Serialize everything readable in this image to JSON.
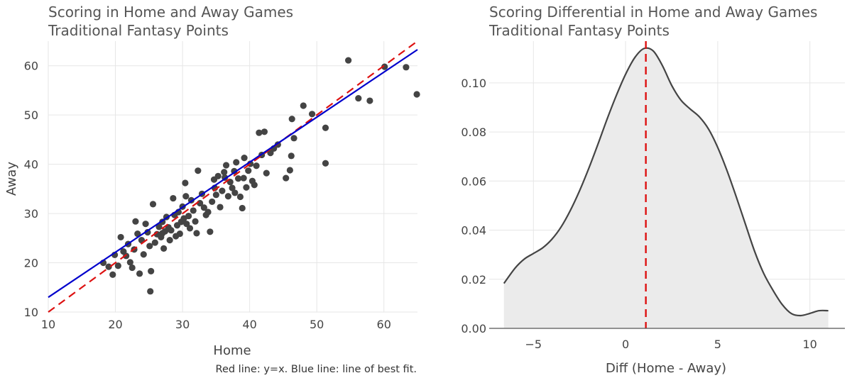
{
  "chart_data": [
    {
      "type": "scatter",
      "title": "Scoring in Home and Away Games",
      "subtitle": "Traditional Fantasy Points",
      "xlabel": "Home",
      "ylabel": "Away",
      "caption": "Red line: y=x. Blue line: line of best fit.",
      "xlim": [
        10,
        65
      ],
      "ylim": [
        10,
        65
      ],
      "xticks": [
        10,
        20,
        30,
        40,
        50,
        60
      ],
      "yticks": [
        10,
        20,
        30,
        40,
        50,
        60
      ],
      "grid": true,
      "colors": {
        "points": "#444444",
        "identity_line": "#dd1111",
        "fit_line": "#0000cc"
      },
      "reference_line": {
        "slope": 1,
        "intercept": 0
      },
      "fit_line": {
        "slope": 0.914,
        "intercept": 3.86
      },
      "points": [
        [
          18.2,
          20.0
        ],
        [
          19.0,
          19.2
        ],
        [
          19.6,
          17.6
        ],
        [
          19.9,
          21.6
        ],
        [
          20.4,
          19.4
        ],
        [
          20.8,
          25.2
        ],
        [
          21.2,
          22.3
        ],
        [
          21.6,
          21.4
        ],
        [
          21.9,
          23.8
        ],
        [
          22.2,
          20.1
        ],
        [
          22.5,
          19.0
        ],
        [
          22.8,
          22.7
        ],
        [
          23.0,
          28.4
        ],
        [
          23.3,
          25.9
        ],
        [
          23.6,
          17.8
        ],
        [
          23.9,
          24.6
        ],
        [
          24.2,
          21.7
        ],
        [
          24.5,
          27.9
        ],
        [
          24.8,
          26.2
        ],
        [
          25.1,
          23.4
        ],
        [
          25.3,
          18.3
        ],
        [
          25.2,
          14.2
        ],
        [
          25.6,
          31.9
        ],
        [
          25.9,
          24.1
        ],
        [
          26.2,
          25.8
        ],
        [
          26.5,
          27.3
        ],
        [
          26.8,
          25.2
        ],
        [
          27.0,
          28.3
        ],
        [
          27.2,
          22.9
        ],
        [
          27.4,
          26.4
        ],
        [
          27.6,
          29.3
        ],
        [
          27.9,
          27.2
        ],
        [
          28.1,
          24.6
        ],
        [
          28.3,
          26.6
        ],
        [
          28.6,
          33.1
        ],
        [
          28.8,
          29.7
        ],
        [
          29.0,
          25.4
        ],
        [
          29.2,
          27.6
        ],
        [
          29.4,
          30.3
        ],
        [
          29.6,
          25.9
        ],
        [
          29.8,
          28.3
        ],
        [
          30.0,
          31.4
        ],
        [
          30.2,
          29.0
        ],
        [
          30.4,
          36.2
        ],
        [
          30.6,
          27.9
        ],
        [
          30.9,
          29.5
        ],
        [
          31.1,
          27.0
        ],
        [
          31.3,
          32.7
        ],
        [
          31.6,
          30.6
        ],
        [
          31.9,
          28.4
        ],
        [
          32.1,
          26.0
        ],
        [
          32.3,
          38.7
        ],
        [
          32.6,
          32.1
        ],
        [
          32.9,
          34.0
        ],
        [
          33.2,
          31.2
        ],
        [
          33.5,
          29.7
        ],
        [
          33.8,
          30.3
        ],
        [
          34.1,
          26.3
        ],
        [
          34.4,
          32.4
        ],
        [
          34.7,
          36.9
        ],
        [
          35.0,
          33.8
        ],
        [
          35.3,
          37.6
        ],
        [
          35.6,
          31.3
        ],
        [
          35.9,
          34.6
        ],
        [
          36.2,
          38.4
        ],
        [
          36.5,
          39.8
        ],
        [
          36.8,
          33.5
        ],
        [
          37.1,
          36.4
        ],
        [
          37.4,
          35.2
        ],
        [
          37.7,
          38.6
        ],
        [
          38.0,
          40.4
        ],
        [
          38.3,
          37.1
        ],
        [
          38.6,
          33.4
        ],
        [
          38.9,
          31.1
        ],
        [
          39.2,
          41.3
        ],
        [
          39.5,
          35.3
        ],
        [
          39.8,
          38.7
        ],
        [
          40.1,
          40.1
        ],
        [
          40.4,
          36.6
        ],
        [
          40.7,
          35.8
        ],
        [
          41.0,
          39.7
        ],
        [
          41.4,
          46.4
        ],
        [
          41.8,
          41.9
        ],
        [
          42.2,
          46.6
        ],
        [
          42.5,
          38.2
        ],
        [
          43.1,
          42.3
        ],
        [
          43.6,
          43.2
        ],
        [
          44.2,
          44.0
        ],
        [
          45.4,
          37.2
        ],
        [
          46.0,
          38.8
        ],
        [
          46.2,
          41.7
        ],
        [
          46.3,
          49.2
        ],
        [
          46.6,
          45.3
        ],
        [
          48.0,
          51.9
        ],
        [
          49.3,
          50.2
        ],
        [
          51.3,
          47.4
        ],
        [
          51.3,
          40.2
        ],
        [
          54.7,
          61.1
        ],
        [
          56.2,
          53.4
        ],
        [
          57.9,
          52.9
        ],
        [
          60.1,
          59.8
        ],
        [
          63.3,
          59.7
        ],
        [
          64.9,
          54.2
        ],
        [
          27.0,
          26.0
        ],
        [
          30.5,
          33.5
        ],
        [
          34.8,
          35.2
        ],
        [
          36.3,
          37.3
        ],
        [
          37.8,
          34.2
        ],
        [
          39.1,
          37.2
        ]
      ]
    },
    {
      "type": "area",
      "title": "Scoring Differential in Home and Away Games",
      "subtitle": "Traditional Fantasy Points",
      "xlabel": "Diff (Home - Away)",
      "ylabel": "",
      "xlim": [
        -7.4,
        11.9
      ],
      "ylim": [
        0,
        0.117
      ],
      "xticks": [
        -5,
        0,
        5,
        10
      ],
      "xtick_labels": [
        "−5",
        "0",
        "5",
        "10"
      ],
      "yticks": [
        0.0,
        0.02,
        0.04,
        0.06,
        0.08,
        0.1
      ],
      "ytick_labels": [
        "0.00",
        "0.02",
        "0.04",
        "0.06",
        "0.08",
        "0.10"
      ],
      "grid": true,
      "colors": {
        "curve": "#444444",
        "fill": "#ebebeb",
        "vline": "#dd1111"
      },
      "vline_x": 1.1,
      "density": [
        [
          -6.6,
          0.0183
        ],
        [
          -6.0,
          0.0245
        ],
        [
          -5.5,
          0.0282
        ],
        [
          -5.0,
          0.0305
        ],
        [
          -4.5,
          0.0328
        ],
        [
          -4.0,
          0.0363
        ],
        [
          -3.5,
          0.0413
        ],
        [
          -3.0,
          0.048
        ],
        [
          -2.5,
          0.056
        ],
        [
          -2.0,
          0.0651
        ],
        [
          -1.5,
          0.075
        ],
        [
          -1.0,
          0.0853
        ],
        [
          -0.5,
          0.0949
        ],
        [
          0.0,
          0.1035
        ],
        [
          0.5,
          0.1103
        ],
        [
          1.0,
          0.114
        ],
        [
          1.5,
          0.113
        ],
        [
          2.0,
          0.107
        ],
        [
          2.5,
          0.099
        ],
        [
          3.0,
          0.093
        ],
        [
          3.5,
          0.0894
        ],
        [
          4.0,
          0.0862
        ],
        [
          4.5,
          0.0812
        ],
        [
          5.0,
          0.0737
        ],
        [
          5.5,
          0.0643
        ],
        [
          6.0,
          0.0537
        ],
        [
          6.5,
          0.0425
        ],
        [
          7.0,
          0.0314
        ],
        [
          7.5,
          0.0223
        ],
        [
          8.0,
          0.0155
        ],
        [
          8.5,
          0.0097
        ],
        [
          9.0,
          0.006
        ],
        [
          9.5,
          0.0052
        ],
        [
          10.0,
          0.0061
        ],
        [
          10.5,
          0.0072
        ],
        [
          11.0,
          0.0072
        ]
      ]
    }
  ]
}
